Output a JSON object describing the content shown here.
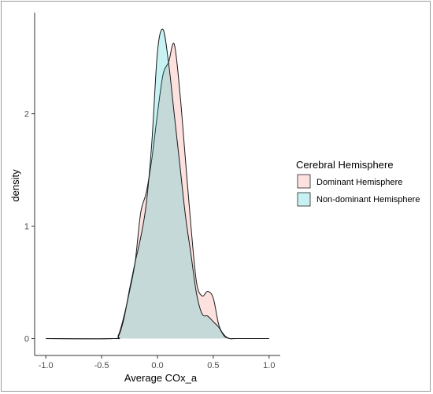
{
  "chart_data": {
    "type": "area",
    "title": "",
    "xlabel": "Average COx_a",
    "ylabel": "density",
    "xlim": [
      -1.1,
      1.1
    ],
    "ylim": [
      -0.15,
      2.9
    ],
    "x_ticks": [
      -1.0,
      -0.5,
      0.0,
      0.5,
      1.0
    ],
    "x_tick_labels": [
      "-1.0",
      "-0.5",
      "0.0",
      "0.5",
      "1.0"
    ],
    "y_ticks": [
      0,
      1,
      2
    ],
    "y_tick_labels": [
      "0",
      "1",
      "2"
    ],
    "grid": false,
    "legend": {
      "title": "Cerebral Hemisphere",
      "placement": "right",
      "entries": [
        "Dominant Hemisphere",
        "Non-dominant Hemisphere"
      ]
    },
    "series": [
      {
        "name": "Dominant Hemisphere",
        "fill": "#F8766D",
        "fill_opacity": 0.22,
        "x": [
          -1.0,
          -0.4,
          -0.35,
          -0.3,
          -0.25,
          -0.2,
          -0.15,
          -0.1,
          -0.05,
          0.0,
          0.05,
          0.1,
          0.15,
          0.2,
          0.25,
          0.3,
          0.35,
          0.4,
          0.45,
          0.5,
          0.55,
          0.6,
          0.65,
          0.7,
          1.0
        ],
        "y": [
          0.0,
          0.0,
          0.03,
          0.2,
          0.42,
          0.68,
          1.12,
          1.3,
          1.6,
          2.0,
          2.35,
          2.46,
          2.62,
          2.2,
          1.6,
          1.0,
          0.5,
          0.38,
          0.42,
          0.36,
          0.12,
          0.03,
          0.0,
          0.0,
          0.0
        ]
      },
      {
        "name": "Non-dominant Hemisphere",
        "fill": "#00BFC4",
        "fill_opacity": 0.22,
        "x": [
          -1.0,
          -0.4,
          -0.35,
          -0.3,
          -0.25,
          -0.2,
          -0.15,
          -0.1,
          -0.05,
          0.0,
          0.05,
          0.1,
          0.15,
          0.2,
          0.25,
          0.3,
          0.35,
          0.4,
          0.45,
          0.5,
          0.55,
          0.6,
          0.65,
          0.7,
          1.0
        ],
        "y": [
          0.0,
          0.0,
          0.02,
          0.18,
          0.44,
          0.68,
          0.9,
          1.2,
          1.75,
          2.55,
          2.75,
          2.45,
          2.0,
          1.55,
          1.1,
          0.75,
          0.4,
          0.22,
          0.2,
          0.15,
          0.1,
          0.02,
          0.0,
          0.0,
          0.0
        ]
      }
    ]
  }
}
